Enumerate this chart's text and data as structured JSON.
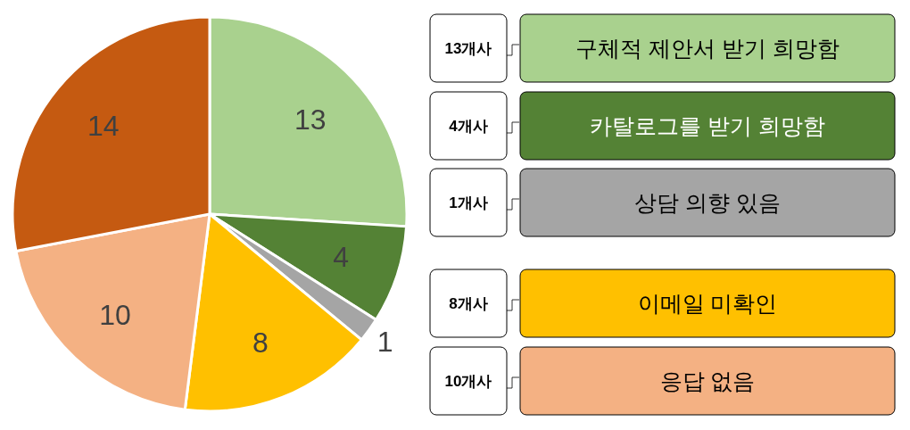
{
  "chart_data": {
    "type": "pie",
    "categories": [
      null,
      null,
      null,
      null,
      null,
      null
    ],
    "values": [
      13,
      4,
      1,
      8,
      10,
      14
    ],
    "colors": [
      "#a9d18e",
      "#548235",
      "#a5a5a5",
      "#ffc000",
      "#f4b183",
      "#c55a11"
    ],
    "data_labels": true,
    "annotations": [
      "13개사",
      "구체적 제안서 받기 희망함",
      "4개사",
      "카탈로그를 받기 희망함",
      "1개사",
      "상담 의향 있음",
      "8개사",
      "이메일 미확인",
      "10개사",
      "응답 없음"
    ]
  }
}
